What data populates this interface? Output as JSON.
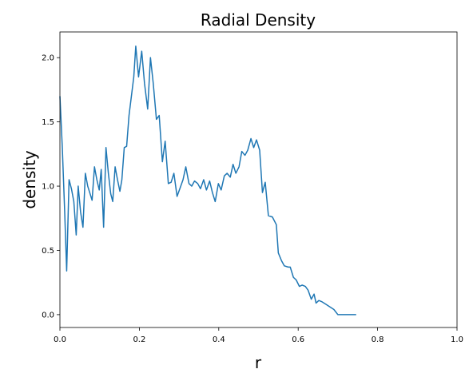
{
  "chart_data": {
    "type": "line",
    "title": "Radial Density",
    "xlabel": "r",
    "ylabel": "density",
    "color": "#1f77b4",
    "x": [
      0.0,
      0.006,
      0.012,
      0.017,
      0.023,
      0.029,
      0.035,
      0.041,
      0.046,
      0.052,
      0.058,
      0.064,
      0.07,
      0.075,
      0.081,
      0.087,
      0.093,
      0.099,
      0.104,
      0.11,
      0.116,
      0.122,
      0.128,
      0.133,
      0.139,
      0.145,
      0.151,
      0.156,
      0.162,
      0.168,
      0.174,
      0.18,
      0.186,
      0.191,
      0.198,
      0.206,
      0.213,
      0.221,
      0.228,
      0.235,
      0.243,
      0.25,
      0.258,
      0.265,
      0.273,
      0.28,
      0.287,
      0.295,
      0.302,
      0.31,
      0.317,
      0.325,
      0.332,
      0.339,
      0.347,
      0.354,
      0.362,
      0.369,
      0.377,
      0.384,
      0.391,
      0.399,
      0.406,
      0.414,
      0.421,
      0.429,
      0.436,
      0.443,
      0.451,
      0.458,
      0.466,
      0.473,
      0.481,
      0.488,
      0.495,
      0.503,
      0.51,
      0.517,
      0.525,
      0.535,
      0.545,
      0.55,
      0.558,
      0.565,
      0.575,
      0.58,
      0.588,
      0.595,
      0.603,
      0.61,
      0.618,
      0.625,
      0.633,
      0.64,
      0.645,
      0.652,
      0.66,
      0.67,
      0.68,
      0.69,
      0.7,
      0.746
    ],
    "values": [
      1.7,
      1.3,
      0.8,
      0.34,
      1.05,
      0.98,
      0.88,
      0.62,
      1.0,
      0.8,
      0.68,
      1.1,
      1.0,
      0.95,
      0.89,
      1.15,
      1.05,
      0.97,
      1.13,
      0.68,
      1.3,
      1.1,
      0.94,
      0.88,
      1.15,
      1.05,
      0.96,
      1.05,
      1.3,
      1.31,
      1.55,
      1.7,
      1.85,
      2.09,
      1.85,
      2.05,
      1.8,
      1.6,
      2.0,
      1.8,
      1.52,
      1.55,
      1.19,
      1.35,
      1.02,
      1.03,
      1.1,
      0.92,
      0.98,
      1.05,
      1.15,
      1.02,
      1.0,
      1.04,
      1.02,
      0.98,
      1.05,
      0.97,
      1.04,
      0.95,
      0.88,
      1.02,
      0.97,
      1.08,
      1.1,
      1.07,
      1.17,
      1.1,
      1.15,
      1.27,
      1.24,
      1.28,
      1.37,
      1.3,
      1.36,
      1.28,
      0.95,
      1.03,
      0.77,
      0.76,
      0.7,
      0.48,
      0.42,
      0.38,
      0.37,
      0.37,
      0.29,
      0.27,
      0.22,
      0.23,
      0.22,
      0.19,
      0.12,
      0.16,
      0.09,
      0.11,
      0.1,
      0.08,
      0.06,
      0.04,
      0.0,
      0.0
    ],
    "xlim": [
      0,
      1
    ],
    "ylim": [
      -0.1,
      2.2
    ],
    "xticks": [
      {
        "value": 0,
        "label": "0.0"
      },
      0.2,
      0.4,
      0.6,
      0.8,
      {
        "value": 1,
        "label": "1.0"
      }
    ],
    "yticks": [
      {
        "value": 0,
        "label": "0.0"
      },
      0.5,
      {
        "value": 1,
        "label": "1.0"
      },
      1.5,
      {
        "value": 2,
        "label": "2.0"
      }
    ],
    "grid": false
  }
}
